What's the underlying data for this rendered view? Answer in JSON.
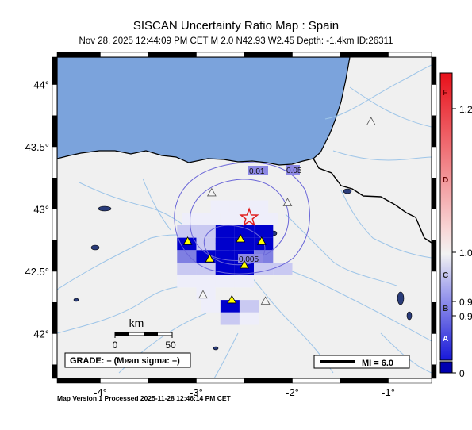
{
  "header": {
    "title": "SISCAN Uncertainty Ratio Map : Spain",
    "subtitle": "Nov 28, 2025 12:44:09 PM CET   M 2.0    N42.93 W2.45    Depth: -1.4km    ID:26311"
  },
  "footer": {
    "processed": "Map Version 1 Processed 2025-11-28 12:46:14 PM CET"
  },
  "axes": {
    "lon_min": -4.45,
    "lon_max": -0.55,
    "lat_min": 41.64,
    "lat_max": 44.22,
    "x_ticks": [
      {
        "lon": -4,
        "label": "-4°"
      },
      {
        "lon": -3,
        "label": "-3°"
      },
      {
        "lon": -2,
        "label": "-2°"
      },
      {
        "lon": -1,
        "label": "-1°"
      }
    ],
    "y_ticks": [
      {
        "lat": 44,
        "label": "44°"
      },
      {
        "lat": 43.5,
        "label": "43.5°"
      },
      {
        "lat": 43,
        "label": "43°"
      },
      {
        "lat": 42.5,
        "label": "42.5°"
      },
      {
        "lat": 42,
        "label": "42°"
      }
    ]
  },
  "contours": [
    {
      "label": "0.01"
    },
    {
      "label": "0.05"
    },
    {
      "label": "0.005"
    }
  ],
  "epicenter": {
    "lon": -2.45,
    "lat": 42.93,
    "color": "#e02020"
  },
  "stations_active": [
    {
      "lon": -3.09,
      "lat": 42.74
    },
    {
      "lon": -2.54,
      "lat": 42.76
    },
    {
      "lon": -2.32,
      "lat": 42.74
    },
    {
      "lon": -2.86,
      "lat": 42.6
    },
    {
      "lon": -2.5,
      "lat": 42.55
    },
    {
      "lon": -2.63,
      "lat": 42.27
    }
  ],
  "stations_inactive": [
    {
      "lon": -2.84,
      "lat": 43.13
    },
    {
      "lon": -2.05,
      "lat": 43.05
    },
    {
      "lon": -2.93,
      "lat": 42.31
    },
    {
      "lon": -2.28,
      "lat": 42.26
    },
    {
      "lon": -1.18,
      "lat": 43.7
    }
  ],
  "scale_bar": {
    "title": "km",
    "tick_0": "0",
    "tick_50": "50"
  },
  "grade_box": {
    "text": "GRADE: – (Mean sigma: –)"
  },
  "mi_legend": {
    "text": "MI = 6.0"
  },
  "colorbar": {
    "letters": [
      "F",
      "D",
      "C",
      "B",
      "A"
    ],
    "values": [
      "1.2",
      "1.0",
      "0.9",
      "0.9",
      "0"
    ]
  },
  "colors": {
    "sea": "#7ba3dc",
    "land": "#f0f0f0",
    "river": "#9ec5e8",
    "grid_dark_blue": "#0000cc",
    "contour": "#6a66d8"
  },
  "uncertainty_grid": [
    {
      "lon": -3.05,
      "lat": 42.92,
      "level": 1
    },
    {
      "lon": -2.85,
      "lat": 42.92,
      "level": 1
    },
    {
      "lon": -2.65,
      "lat": 42.92,
      "level": 1
    },
    {
      "lon": -2.45,
      "lat": 42.92,
      "level": 1
    },
    {
      "lon": -2.25,
      "lat": 42.92,
      "level": 1
    },
    {
      "lon": -2.75,
      "lat": 43.02,
      "level": 1
    },
    {
      "lon": -2.55,
      "lat": 43.02,
      "level": 1
    },
    {
      "lon": -2.35,
      "lat": 43.02,
      "level": 1
    },
    {
      "lon": -3.1,
      "lat": 42.82,
      "level": 2
    },
    {
      "lon": -2.7,
      "lat": 42.82,
      "level": 4
    },
    {
      "lon": -2.5,
      "lat": 42.82,
      "level": 4
    },
    {
      "lon": -2.3,
      "lat": 42.82,
      "level": 4
    },
    {
      "lon": -2.9,
      "lat": 42.82,
      "level": 2
    },
    {
      "lon": -3.1,
      "lat": 42.72,
      "level": 4
    },
    {
      "lon": -2.9,
      "lat": 42.72,
      "level": 2
    },
    {
      "lon": -2.7,
      "lat": 42.72,
      "level": 4
    },
    {
      "lon": -2.5,
      "lat": 42.72,
      "level": 4
    },
    {
      "lon": -2.3,
      "lat": 42.72,
      "level": 4
    },
    {
      "lon": -3.1,
      "lat": 42.62,
      "level": 3
    },
    {
      "lon": -2.9,
      "lat": 42.62,
      "level": 4
    },
    {
      "lon": -2.7,
      "lat": 42.62,
      "level": 4
    },
    {
      "lon": -2.5,
      "lat": 42.62,
      "level": 4
    },
    {
      "lon": -2.3,
      "lat": 42.62,
      "level": 3
    },
    {
      "lon": -3.1,
      "lat": 42.52,
      "level": 2
    },
    {
      "lon": -2.9,
      "lat": 42.52,
      "level": 2
    },
    {
      "lon": -2.7,
      "lat": 42.52,
      "level": 4
    },
    {
      "lon": -2.5,
      "lat": 42.52,
      "level": 4
    },
    {
      "lon": -2.3,
      "lat": 42.52,
      "level": 2
    },
    {
      "lon": -2.1,
      "lat": 42.52,
      "level": 2
    },
    {
      "lon": -3.1,
      "lat": 42.42,
      "level": 1
    },
    {
      "lon": -2.9,
      "lat": 42.42,
      "level": 1
    },
    {
      "lon": -2.7,
      "lat": 42.42,
      "level": 1
    },
    {
      "lon": -2.5,
      "lat": 42.42,
      "level": 1
    },
    {
      "lon": -2.9,
      "lat": 42.32,
      "level": 1
    },
    {
      "lon": -2.65,
      "lat": 42.22,
      "level": 4
    },
    {
      "lon": -2.45,
      "lat": 42.22,
      "level": 2
    },
    {
      "lon": -2.85,
      "lat": 42.22,
      "level": 1
    },
    {
      "lon": -2.65,
      "lat": 42.12,
      "level": 2
    },
    {
      "lon": -2.45,
      "lat": 42.12,
      "level": 1
    }
  ]
}
